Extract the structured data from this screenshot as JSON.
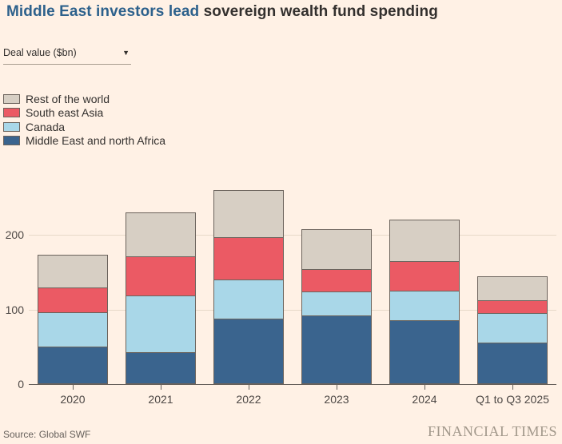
{
  "page": {
    "title_highlight": "Middle East investors lead",
    "title_rest": " sovereign wealth fund spending",
    "source": "Source: Global SWF",
    "brand": "FINANCIAL TIMES"
  },
  "controls": {
    "metric_dropdown_value": "Deal value ($bn)",
    "caret_icon": "▼"
  },
  "colors": {
    "background": "#FFF1E5",
    "title_highlight": "#2D618C",
    "text": "#33302E",
    "axis": "#66605B",
    "gridline": "#E7D9C9",
    "bar_border": "#6B635C",
    "brand": "#A2988B"
  },
  "chart_data": {
    "type": "bar",
    "stacked": true,
    "title": "Middle East investors lead sovereign wealth fund spending",
    "xlabel": "",
    "ylabel": "Deal value ($bn)",
    "categories": [
      "2020",
      "2021",
      "2022",
      "2023",
      "2024",
      "Q1 to Q3 2025"
    ],
    "series": [
      {
        "name": "Middle East and north Africa",
        "color": "#3A648E",
        "values": [
          50,
          43,
          88,
          92,
          86,
          56
        ]
      },
      {
        "name": "Canada",
        "color": "#A9D7E8",
        "values": [
          46,
          76,
          52,
          32,
          39,
          39
        ]
      },
      {
        "name": "South east Asia",
        "color": "#EB5A64",
        "values": [
          33,
          52,
          57,
          30,
          40,
          17
        ]
      },
      {
        "name": "Rest of the world",
        "color": "#D7CFC4",
        "values": [
          44,
          59,
          63,
          54,
          55,
          32
        ]
      }
    ],
    "totals": [
      173,
      230,
      260,
      208,
      220,
      144
    ],
    "ylim": [
      0,
      274
    ],
    "yticks": [
      0,
      100,
      200
    ],
    "grid": true,
    "legend_position": "top-left",
    "legend_order_top_to_bottom": [
      "Rest of the world",
      "South east Asia",
      "Canada",
      "Middle East and north Africa"
    ]
  }
}
